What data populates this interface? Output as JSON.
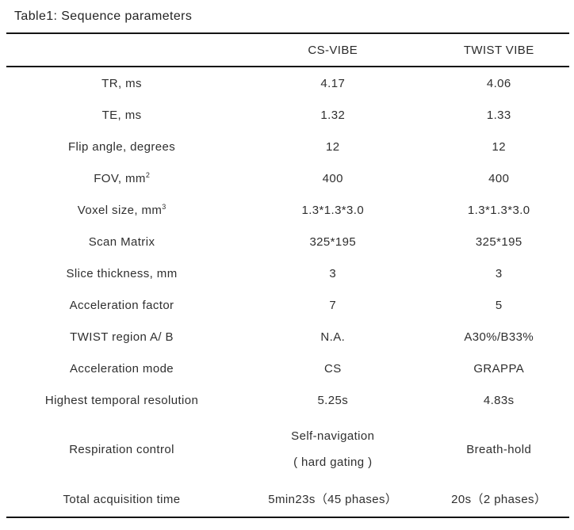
{
  "title": "Table1: Sequence parameters",
  "table": {
    "columns": [
      "",
      "CS-VIBE",
      "TWIST VIBE"
    ],
    "rows": [
      {
        "label": "TR, ms",
        "cs": "4.17",
        "twist": "4.06"
      },
      {
        "label": "TE, ms",
        "cs": "1.32",
        "twist": "1.33"
      },
      {
        "label": "Flip angle, degrees",
        "cs": "12",
        "twist": "12"
      },
      {
        "label": "FOV, mm",
        "sup": "2",
        "cs": "400",
        "twist": "400"
      },
      {
        "label": "Voxel size, mm",
        "sup": "3",
        "cs": "1.3*1.3*3.0",
        "twist": "1.3*1.3*3.0"
      },
      {
        "label": "Scan Matrix",
        "cs": "325*195",
        "twist": "325*195"
      },
      {
        "label": "Slice thickness, mm",
        "cs": "3",
        "twist": "3"
      },
      {
        "label": "Acceleration factor",
        "cs": "7",
        "twist": "5"
      },
      {
        "label": "TWIST region A/ B",
        "cs": "N.A.",
        "twist": "A30%/B33%"
      },
      {
        "label": "Acceleration mode",
        "cs": "CS",
        "twist": "GRAPPA"
      },
      {
        "label": "Highest temporal resolution",
        "cs": "5.25s",
        "twist": "4.83s"
      },
      {
        "label": "Respiration control",
        "cs_line1": "Self-navigation",
        "cs_line2": "( hard gating )",
        "twist": "Breath-hold"
      },
      {
        "label": "Total acquisition time",
        "cs": "5min23s（45 phases）",
        "twist": "20s（2 phases）"
      }
    ]
  }
}
